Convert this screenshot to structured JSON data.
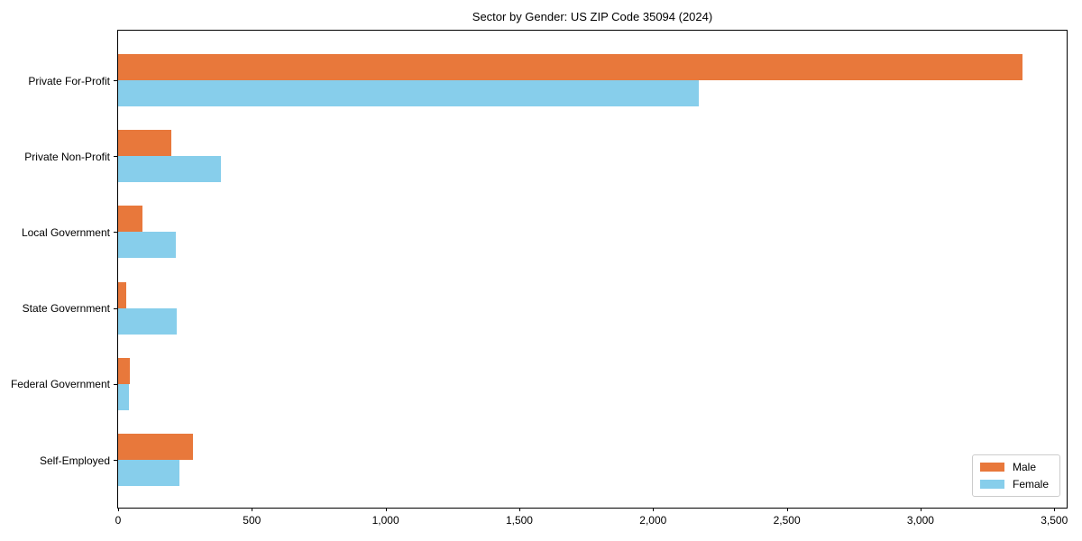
{
  "chart_data": {
    "type": "bar",
    "orientation": "horizontal",
    "title": "Sector by Gender: US ZIP Code 35094 (2024)",
    "categories": [
      "Private For-Profit",
      "Private Non-Profit",
      "Local Government",
      "State Government",
      "Federal Government",
      "Self-Employed"
    ],
    "series": [
      {
        "name": "Male",
        "color": "#e8783b",
        "values": [
          3380,
          200,
          90,
          30,
          45,
          280
        ]
      },
      {
        "name": "Female",
        "color": "#87ceeb",
        "values": [
          2170,
          385,
          215,
          220,
          40,
          230
        ]
      }
    ],
    "xlabel": "",
    "ylabel": "",
    "xlim": [
      0,
      3553
    ],
    "xticks": [
      0,
      500,
      1000,
      1500,
      2000,
      2500,
      3000,
      3500
    ],
    "xtick_labels": [
      "0",
      "500",
      "1,000",
      "1,500",
      "2,000",
      "2,500",
      "3,000",
      "3,500"
    ],
    "grid": false,
    "legend": {
      "position": "lower-right",
      "entries": [
        "Male",
        "Female"
      ]
    }
  }
}
